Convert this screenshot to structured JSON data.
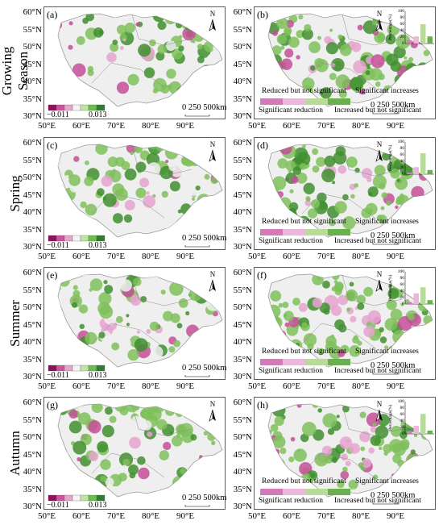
{
  "rows": [
    {
      "label": "Growing Season",
      "left_id": "(a)",
      "right_id": "(b)",
      "percentages": [
        10,
        22,
        60,
        22
      ]
    },
    {
      "label": "Spring",
      "left_id": "(c)",
      "right_id": "(d)",
      "percentages": [
        5,
        22,
        65,
        13
      ]
    },
    {
      "label": "Summer",
      "left_id": "(e)",
      "right_id": "(f)",
      "percentages": [
        6,
        33,
        52,
        12
      ]
    },
    {
      "label": "Autumn",
      "left_id": "(g)",
      "right_id": "(h)",
      "percentages": [
        8,
        25,
        62,
        10
      ]
    }
  ],
  "lat_labels": [
    "60°N",
    "55°N",
    "50°N",
    "45°N",
    "40°N",
    "35°N",
    "30°N"
  ],
  "lon_labels": [
    "50°E",
    "60°E",
    "70°E",
    "80°E",
    "90°E"
  ],
  "north_label": "N",
  "scale_label": "0 250 500km",
  "colorbar": {
    "min_label": "−0.011",
    "max_label": "0.013",
    "colors": [
      "#8e0f5a",
      "#c9569a",
      "#e7a4cc",
      "#f7f2f5",
      "#bfe3a5",
      "#6fbd4c",
      "#2e7d32"
    ]
  },
  "categories": {
    "reduced_ns": "Reduced but not significant",
    "sig_inc": "Significant increases",
    "sig_red": "Significant reduction",
    "inc_ns": "Increased but not significant",
    "colors": [
      "#d27bb8",
      "#edb7dc",
      "#b6dc98",
      "#6ab04c"
    ]
  },
  "inset": {
    "ylabel": "Percentage(%)",
    "ticks": [
      "100",
      "80",
      "60",
      "40",
      "20",
      "0"
    ]
  },
  "map_colors": {
    "land": "#efefef",
    "border": "#9a9a9a",
    "green": "#7fbf5a",
    "darkgreen": "#3f8f2f",
    "pink": "#e6a3d0",
    "magenta": "#c44f98"
  }
}
